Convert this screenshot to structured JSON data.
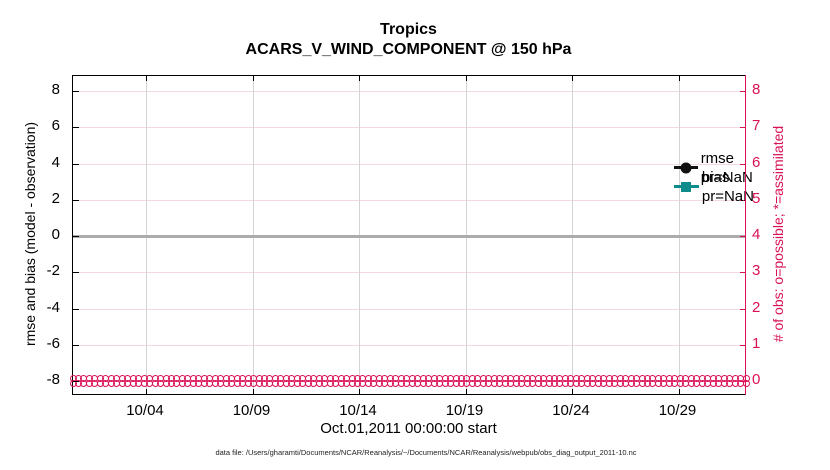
{
  "title": {
    "line1": "Tropics",
    "line2": "ACARS_V_WIND_COMPONENT @ 150 hPa"
  },
  "legend": [
    {
      "label": "rmse pr=NaN",
      "color": "#111111",
      "marker": "circle"
    },
    {
      "label": "bias pr=NaN",
      "color": "#0E8C8C",
      "marker": "square"
    }
  ],
  "axes": {
    "left": {
      "label": "rmse and bias (model - observation)",
      "tick_labels": [
        "8",
        "6",
        "4",
        "2",
        "0",
        "-2",
        "-4",
        "-6",
        "-8"
      ]
    },
    "right": {
      "label": "# of obs: o=possible; *=assimilated",
      "tick_labels": [
        "8",
        "7",
        "6",
        "5",
        "4",
        "3",
        "2",
        "1",
        "0"
      ]
    },
    "x": {
      "label": "Oct.01,2011 00:00:00 start",
      "tick_labels": [
        "10/04",
        "10/09",
        "10/14",
        "10/19",
        "10/24",
        "10/29"
      ]
    }
  },
  "footer": {
    "datafile": "data file: /Users/gharamti/Documents/NCAR/Reanalysis/~/Documents/NCAR/Reanalysis/webpub/obs_diag_output_2011-10.nc"
  },
  "colors": {
    "pink": "#D91157",
    "teal": "#0E8C8C",
    "black": "#111111",
    "zero_line_gray": "#ACACAC",
    "hgrid_pink": "#F5D9E2",
    "vgrid_gray": "#D4D4D4"
  },
  "chart_data": {
    "type": "line",
    "title": "Tropics",
    "subtitle": "ACARS_V_WIND_COMPONENT @ 150 hPa",
    "xlabel": "Oct.01,2011 00:00:00 start",
    "ylabel_left": "rmse and bias (model - observation)",
    "ylabel_right": "# of obs: o=possible; *=assimilated",
    "x_range": [
      "2011-10-01 00:00:00",
      "2011-11-01 00:00:00"
    ],
    "x_tick_labels": [
      "10/04",
      "10/09",
      "10/14",
      "10/19",
      "10/24",
      "10/29"
    ],
    "left_yticks": [
      8,
      6,
      4,
      2,
      0,
      -2,
      -4,
      -6,
      -8
    ],
    "left_ylim": [
      -8.7,
      8.8
    ],
    "right_yticks": [
      8,
      7,
      6,
      5,
      4,
      3,
      2,
      1,
      0
    ],
    "right_ylim": [
      -0.35,
      8.4
    ],
    "grid": true,
    "legend_position": "top-right-inside",
    "zero_reference_line": {
      "axis": "left",
      "y": 0,
      "color": "#ACACAC"
    },
    "series": [
      {
        "name": "rmse pr=NaN",
        "axis": "left",
        "color": "#111111",
        "marker": "circle",
        "values": null,
        "note": "all values NaN - no curve drawn"
      },
      {
        "name": "bias pr=NaN",
        "axis": "left",
        "color": "#0E8C8C",
        "marker": "square",
        "values": null,
        "note": "all values NaN - no curve drawn"
      },
      {
        "name": "# of obs possible (o)",
        "axis": "right",
        "color": "#D91157",
        "marker": "o",
        "n_points": 124,
        "constant_value": 0
      },
      {
        "name": "# of obs assimilated (*)",
        "axis": "right",
        "color": "#D91157",
        "marker": "*",
        "n_points": 124,
        "constant_value": 0
      }
    ]
  }
}
